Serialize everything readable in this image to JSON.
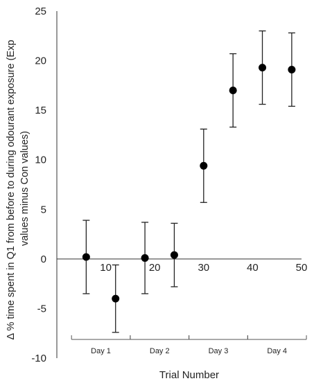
{
  "chart_data": {
    "type": "scatter",
    "xlabel": "Trial Number",
    "ylabel_lines": [
      "Δ % time spent in Q1 from before to during odourant exposure (Exp",
      "values minus Con values)"
    ],
    "xlim": [
      0,
      50
    ],
    "ylim": [
      -10,
      25
    ],
    "x_ticks": [
      "10",
      "20",
      "30",
      "40",
      "50"
    ],
    "x_tick_values": [
      10,
      20,
      30,
      40,
      50
    ],
    "y_ticks": [
      "25",
      "20",
      "15",
      "10",
      "5",
      "0",
      "-5",
      "-10"
    ],
    "y_tick_values": [
      25,
      20,
      15,
      10,
      5,
      0,
      -5,
      -10
    ],
    "points": [
      {
        "x": 6,
        "y": 0.2,
        "err": 3.7
      },
      {
        "x": 12,
        "y": -4.0,
        "err": 3.4
      },
      {
        "x": 18,
        "y": 0.1,
        "err": 3.6
      },
      {
        "x": 24,
        "y": 0.4,
        "err": 3.2
      },
      {
        "x": 30,
        "y": 9.4,
        "err": 3.7
      },
      {
        "x": 36,
        "y": 17.0,
        "err": 3.7
      },
      {
        "x": 42,
        "y": 19.3,
        "err": 3.7
      },
      {
        "x": 48,
        "y": 19.1,
        "err": 3.7
      }
    ],
    "groups": [
      {
        "label": "Day 1",
        "from": 3,
        "to": 15
      },
      {
        "label": "Day 2",
        "from": 15,
        "to": 27
      },
      {
        "label": "Day 3",
        "from": 27,
        "to": 39
      },
      {
        "label": "Day 4",
        "from": 39,
        "to": 51
      }
    ],
    "grid": false
  }
}
